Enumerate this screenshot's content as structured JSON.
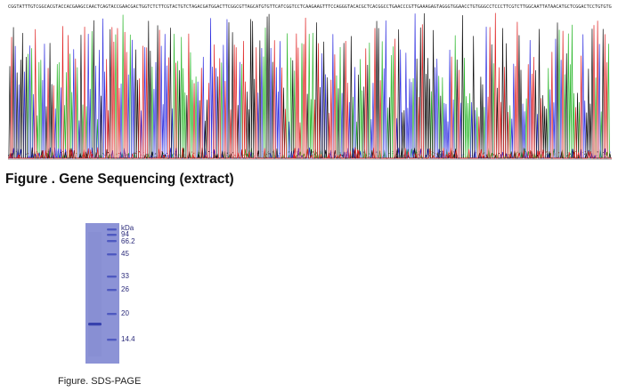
{
  "sequencing": {
    "caption": "Figure . Gene Sequencing (extract)",
    "colors": {
      "A": "#2db82d",
      "C": "#2f2fe0",
      "G": "#111111",
      "T": "#e02020"
    }
  },
  "sds_page": {
    "caption": "Figure. SDS-PAGE",
    "unit_label": "kDa",
    "markers": [
      "94",
      "66.2",
      "45",
      "33",
      "26",
      "20",
      "14.4"
    ],
    "gel_color": "#8c93d6",
    "band_color": "#3a46b8"
  }
}
